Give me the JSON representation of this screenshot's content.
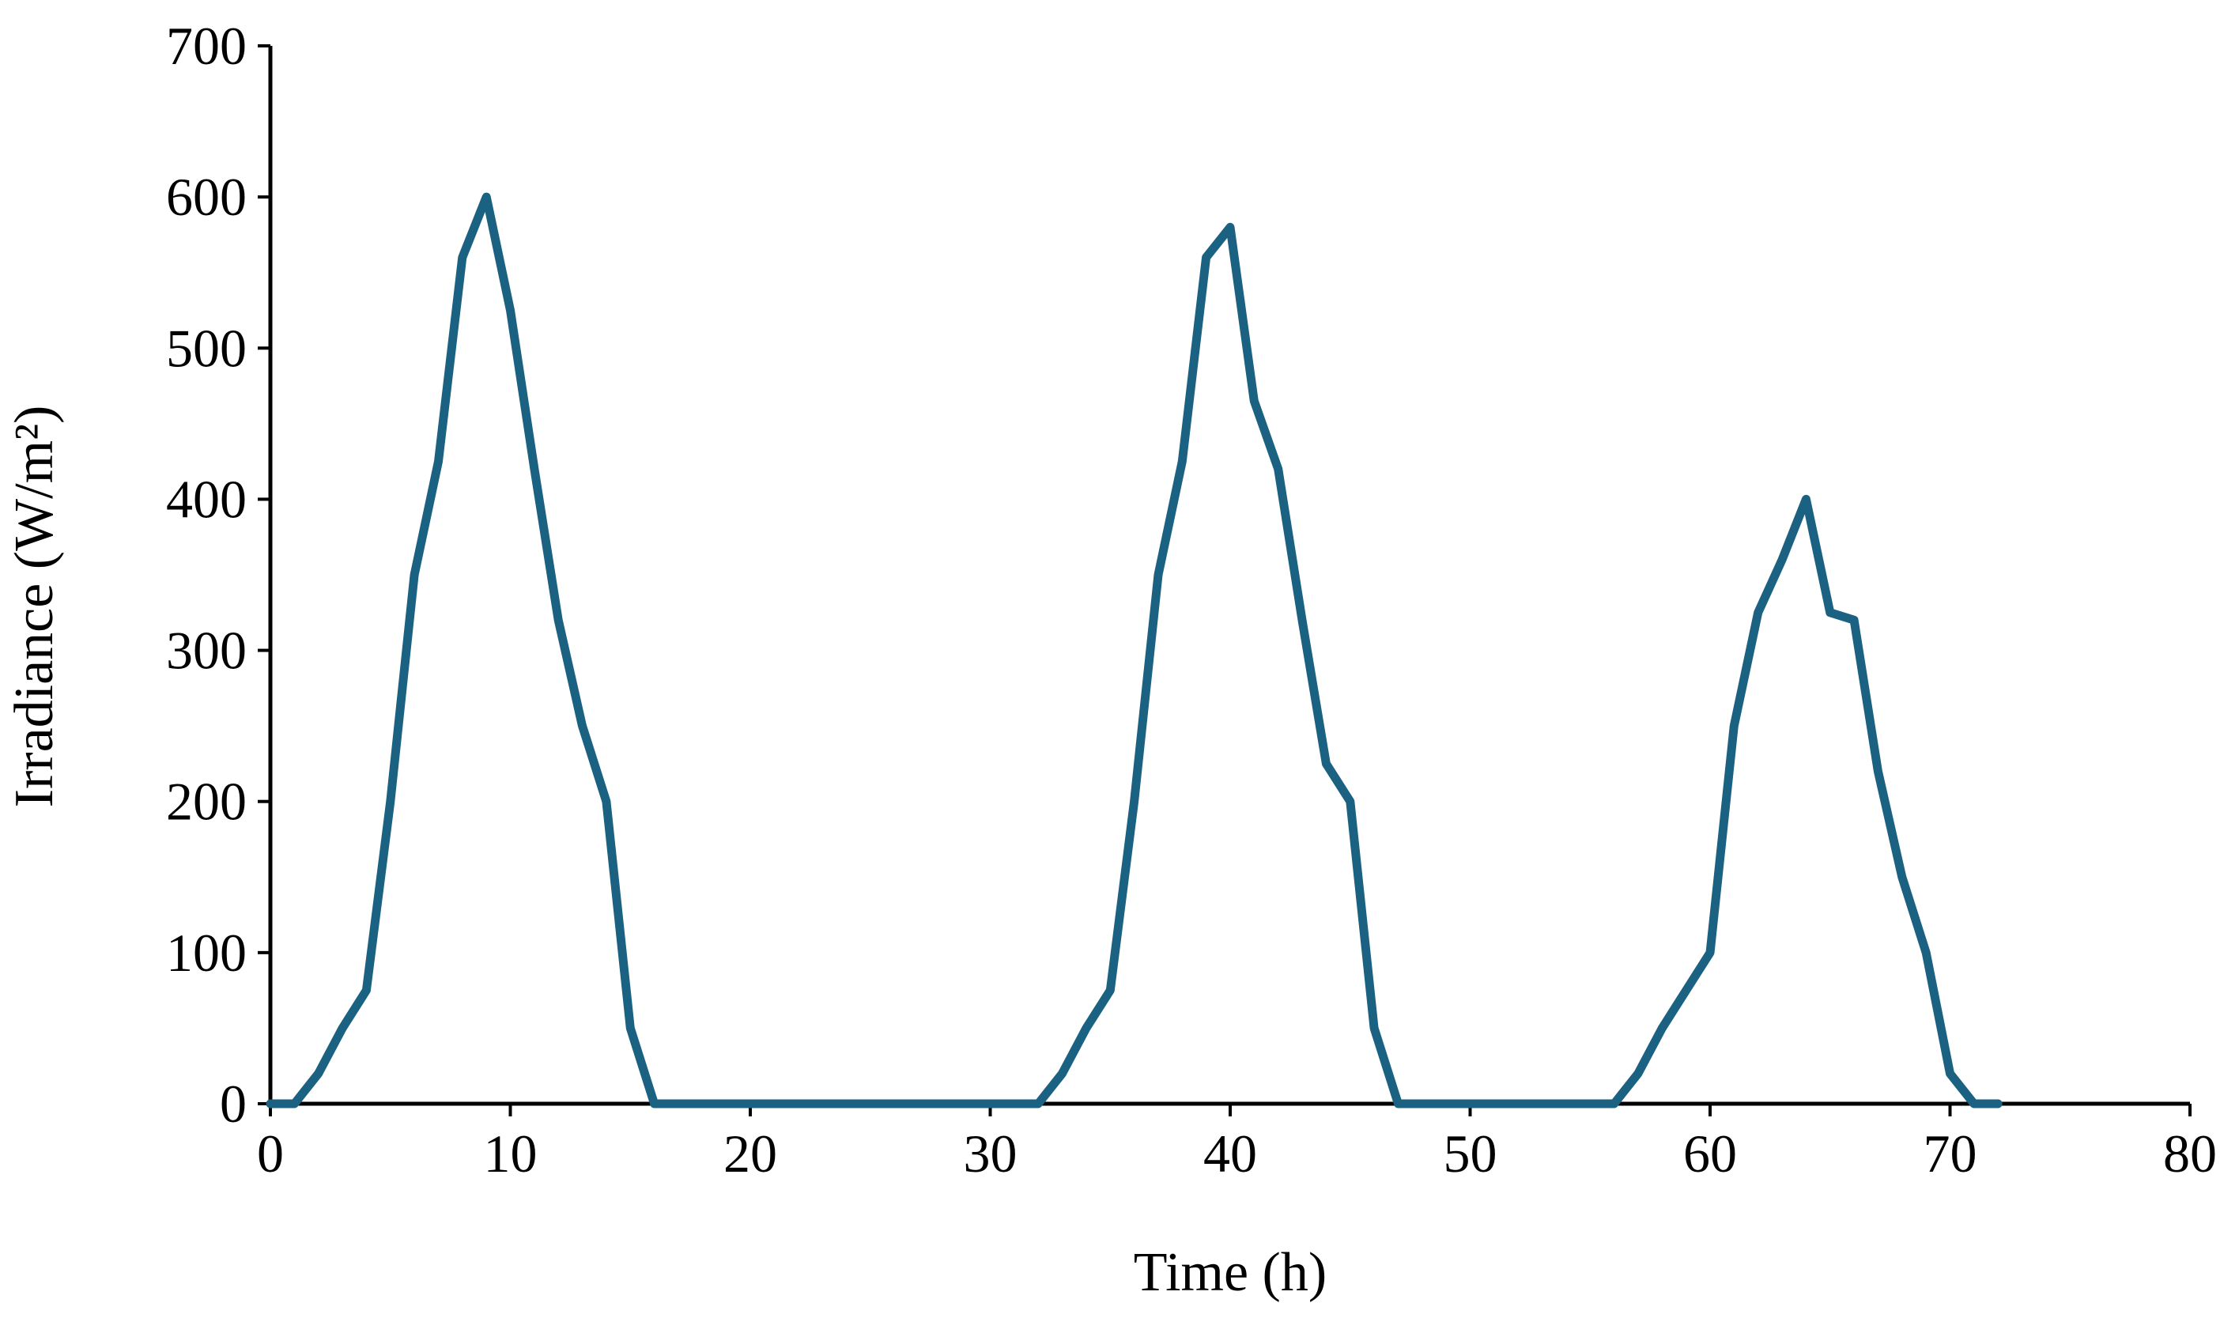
{
  "chart_data": {
    "type": "line",
    "title": "",
    "xlabel": "Time (h)",
    "ylabel": "Irradiance (W/m²)",
    "xlim": [
      0,
      80
    ],
    "ylim": [
      0,
      700
    ],
    "x_ticks": [
      0,
      10,
      20,
      30,
      40,
      50,
      60,
      70,
      80
    ],
    "y_ticks": [
      0,
      100,
      200,
      300,
      400,
      500,
      600,
      700
    ],
    "grid": false,
    "legend": "none",
    "series": [
      {
        "color": "#1b6181",
        "x": [
          0,
          1,
          2,
          3,
          4,
          5,
          6,
          7,
          8,
          9,
          10,
          11,
          12,
          13,
          14,
          15,
          16,
          17,
          18,
          19,
          20,
          21,
          22,
          23,
          24,
          25,
          26,
          27,
          28,
          29,
          30,
          31,
          32,
          33,
          34,
          35,
          36,
          37,
          38,
          39,
          40,
          41,
          42,
          43,
          44,
          45,
          46,
          47,
          48,
          49,
          50,
          51,
          52,
          53,
          54,
          55,
          56,
          57,
          58,
          59,
          60,
          61,
          62,
          63,
          64,
          65,
          66,
          67,
          68,
          69,
          70,
          71,
          72
        ],
        "y": [
          0,
          0,
          20,
          50,
          75,
          200,
          350,
          425,
          560,
          600,
          525,
          420,
          320,
          250,
          200,
          50,
          0,
          0,
          0,
          0,
          0,
          0,
          0,
          0,
          0,
          0,
          0,
          0,
          0,
          0,
          0,
          0,
          0,
          20,
          50,
          75,
          200,
          350,
          425,
          560,
          580,
          465,
          420,
          320,
          225,
          200,
          50,
          0,
          0,
          0,
          0,
          0,
          0,
          0,
          0,
          0,
          0,
          20,
          50,
          75,
          100,
          250,
          325,
          360,
          400,
          325,
          320,
          220,
          150,
          100,
          20,
          0,
          0
        ]
      }
    ]
  }
}
